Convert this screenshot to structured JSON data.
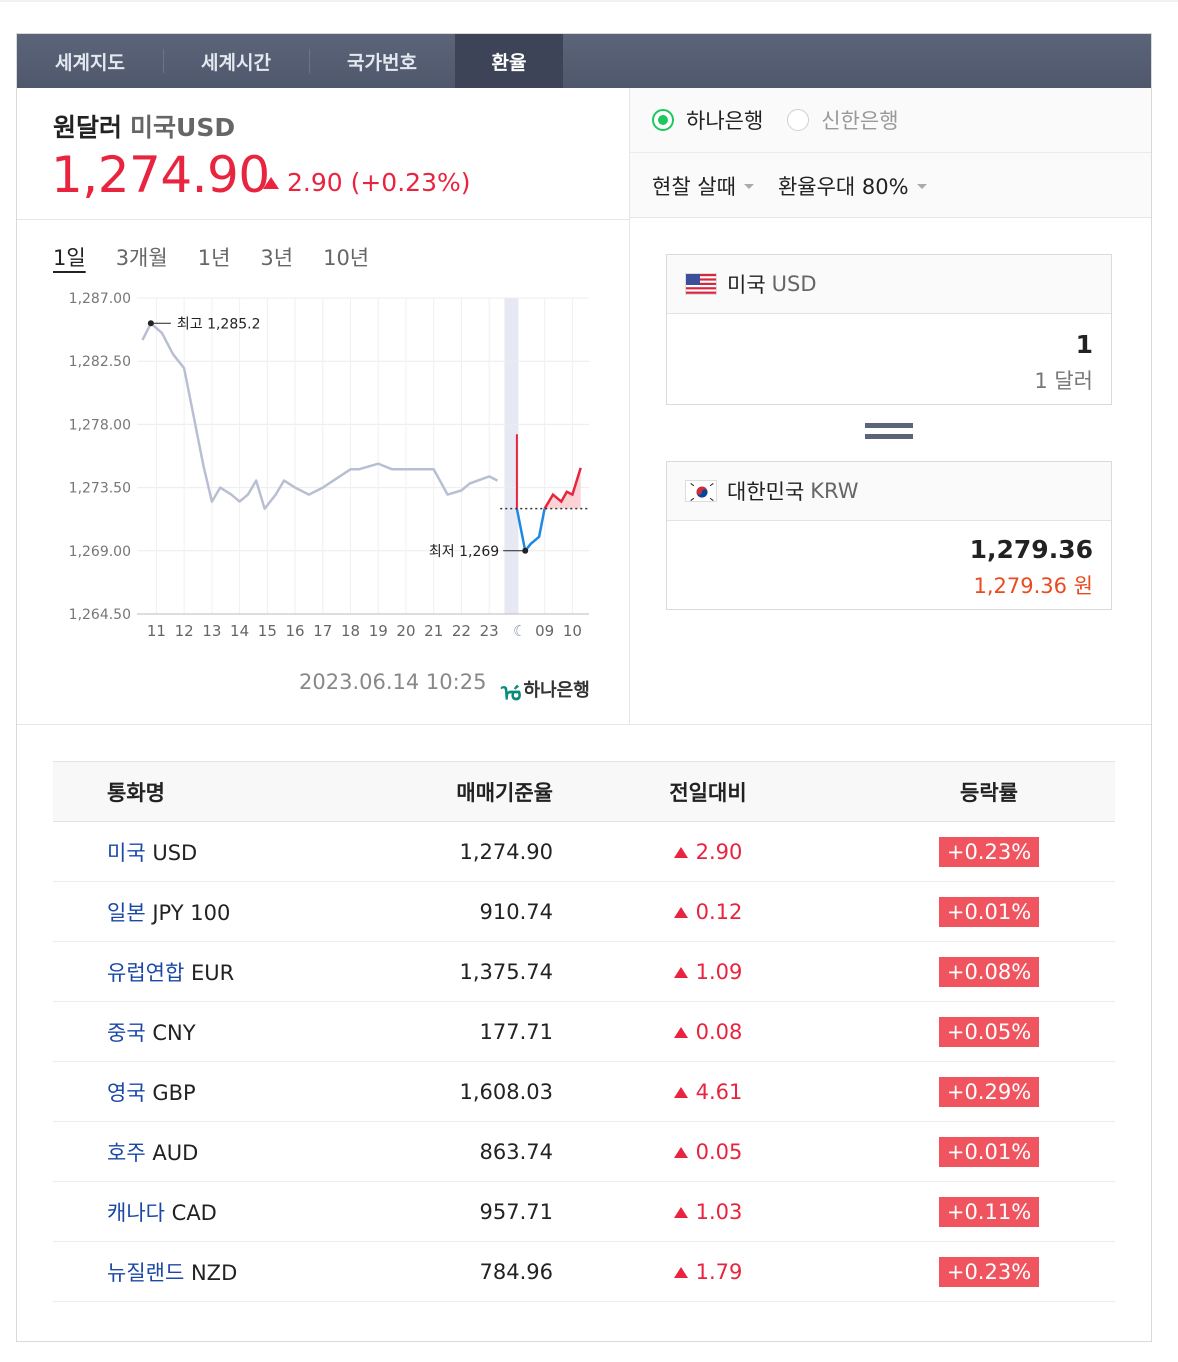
{
  "tabs": [
    "세계지도",
    "세계시간",
    "국가번호",
    "환율"
  ],
  "header": {
    "pair_title": "원달러",
    "pair_sub": "미국USD",
    "rate": "1,274.90",
    "change": "2.90 (+0.23%)"
  },
  "options": {
    "bank1": "하나은행",
    "bank2": "신한은행",
    "trade_type": "현찰 살때",
    "preference": "환율우대 80%"
  },
  "periods": [
    "1일",
    "3개월",
    "1년",
    "3년",
    "10년"
  ],
  "chart_data": {
    "type": "line",
    "title": "",
    "y_ticks": [
      "1,287.00",
      "1,282.50",
      "1,278.00",
      "1,273.50",
      "1,269.00",
      "1,264.50"
    ],
    "ylim": [
      1264.5,
      1287.0
    ],
    "x_ticks": [
      "11",
      "12",
      "13",
      "14",
      "15",
      "16",
      "17",
      "18",
      "19",
      "20",
      "21",
      "22",
      "23",
      "09",
      "10"
    ],
    "high_label": "최고 1,285.2",
    "low_label": "최저 1,269",
    "series": [
      {
        "segment": "previous",
        "x": [
          10.5,
          10.8,
          11.2,
          11.6,
          12.0,
          12.3,
          12.5,
          12.7,
          13.0,
          13.3,
          13.7,
          14.0,
          14.3,
          14.6,
          14.9,
          15.3,
          15.6,
          16.0,
          16.5,
          17.0,
          18.0,
          18.3,
          19.0,
          19.5,
          20.5,
          21.0,
          21.5,
          22.0,
          22.3,
          23.0,
          23.3
        ],
        "y": [
          1284.0,
          1285.2,
          1284.5,
          1283.0,
          1282.0,
          1279.0,
          1277.0,
          1275.0,
          1272.5,
          1273.5,
          1273.0,
          1272.5,
          1273.0,
          1274.0,
          1272.0,
          1273.0,
          1274.0,
          1273.5,
          1273.0,
          1273.5,
          1274.8,
          1274.8,
          1275.2,
          1274.8,
          1274.8,
          1274.8,
          1273.0,
          1273.3,
          1273.8,
          1274.3,
          1274.0
        ]
      },
      {
        "segment": "today",
        "x": [
          24.0,
          24.3,
          24.5,
          24.8,
          25.0,
          25.3,
          25.6,
          25.8,
          26.0,
          26.3
        ],
        "y": [
          1272.0,
          1269.0,
          1269.5,
          1270.0,
          1272.0,
          1273.0,
          1272.5,
          1273.2,
          1273.0,
          1274.9
        ]
      }
    ]
  },
  "timestamp": "2023.06.14 10:25",
  "chart_source": "하나은행",
  "converter": {
    "from_country": "미국",
    "from_code": "USD",
    "from_amount": "1",
    "from_amount_text": "1 달러",
    "to_country": "대한민국",
    "to_code": "KRW",
    "to_amount": "1,279.36",
    "to_amount_text": "1,279.36 원"
  },
  "table": {
    "headers": [
      "통화명",
      "매매기준율",
      "전일대비",
      "등락률"
    ],
    "rows": [
      {
        "name": "미국",
        "code": "USD",
        "rate": "1,274.90",
        "change": "2.90",
        "pct": "+0.23%"
      },
      {
        "name": "일본",
        "code": "JPY 100",
        "rate": "910.74",
        "change": "0.12",
        "pct": "+0.01%"
      },
      {
        "name": "유럽연합",
        "code": "EUR",
        "rate": "1,375.74",
        "change": "1.09",
        "pct": "+0.08%"
      },
      {
        "name": "중국",
        "code": "CNY",
        "rate": "177.71",
        "change": "0.08",
        "pct": "+0.05%"
      },
      {
        "name": "영국",
        "code": "GBP",
        "rate": "1,608.03",
        "change": "4.61",
        "pct": "+0.29%"
      },
      {
        "name": "호주",
        "code": "AUD",
        "rate": "863.74",
        "change": "0.05",
        "pct": "+0.01%"
      },
      {
        "name": "캐나다",
        "code": "CAD",
        "rate": "957.71",
        "change": "1.03",
        "pct": "+0.11%"
      },
      {
        "name": "뉴질랜드",
        "code": "NZD",
        "rate": "784.96",
        "change": "1.79",
        "pct": "+0.23%"
      }
    ]
  },
  "colors": {
    "up": "#e8243e",
    "down": "#1e88e5",
    "badge": "#f0555f",
    "tab_bg": "#565f73",
    "link": "#1b48a8"
  }
}
